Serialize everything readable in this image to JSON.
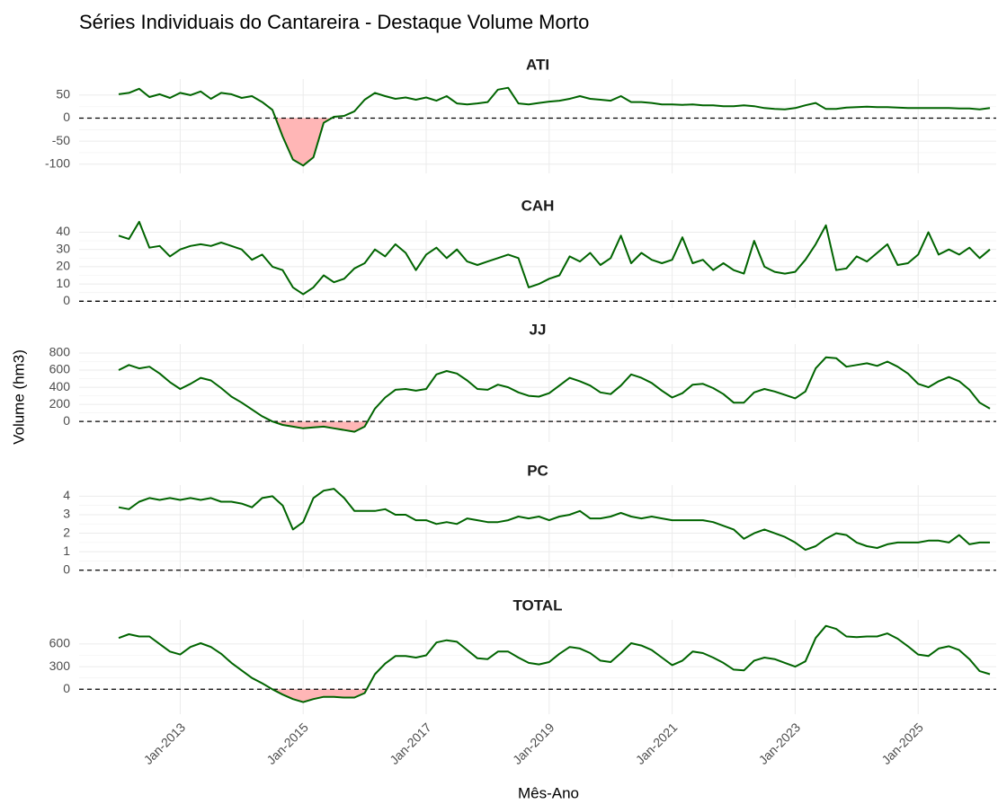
{
  "chart_data": {
    "type": "line",
    "title": "Séries Individuais do Cantareira - Destaque Volume Morto",
    "x_label": "Mês-Ano",
    "y_label": "Volume (hm3)",
    "color": "#006400",
    "negative_fill": "#ffb6b6",
    "hline": 0,
    "grid": true,
    "x": [
      "Jan-2012",
      "Mar-2012",
      "May-2012",
      "Jul-2012",
      "Sep-2012",
      "Nov-2012",
      "Jan-2013",
      "Mar-2013",
      "May-2013",
      "Jul-2013",
      "Sep-2013",
      "Nov-2013",
      "Jan-2014",
      "Mar-2014",
      "May-2014",
      "Jul-2014",
      "Sep-2014",
      "Nov-2014",
      "Jan-2015",
      "Mar-2015",
      "May-2015",
      "Jul-2015",
      "Sep-2015",
      "Nov-2015",
      "Jan-2016",
      "Mar-2016",
      "May-2016",
      "Jul-2016",
      "Sep-2016",
      "Nov-2016",
      "Jan-2017",
      "Mar-2017",
      "May-2017",
      "Jul-2017",
      "Sep-2017",
      "Nov-2017",
      "Jan-2018",
      "Mar-2018",
      "May-2018",
      "Jul-2018",
      "Sep-2018",
      "Nov-2018",
      "Jan-2019",
      "Mar-2019",
      "May-2019",
      "Jul-2019",
      "Sep-2019",
      "Nov-2019",
      "Jan-2020",
      "Mar-2020",
      "May-2020",
      "Jul-2020",
      "Sep-2020",
      "Nov-2020",
      "Jan-2021",
      "Mar-2021",
      "May-2021",
      "Jul-2021",
      "Sep-2021",
      "Nov-2021",
      "Jan-2022",
      "Mar-2022",
      "May-2022",
      "Jul-2022",
      "Sep-2022",
      "Nov-2022",
      "Jan-2023",
      "Mar-2023",
      "May-2023",
      "Jul-2023",
      "Sep-2023",
      "Nov-2023",
      "Jan-2024",
      "Mar-2024",
      "May-2024",
      "Jul-2024",
      "Sep-2024",
      "Nov-2024",
      "Jan-2025",
      "Mar-2025",
      "May-2025",
      "Jul-2025",
      "Sep-2025",
      "Nov-2025",
      "Jan-2026",
      "Mar-2026"
    ],
    "xticks": [
      "Jan-2013",
      "Jan-2015",
      "Jan-2017",
      "Jan-2019",
      "Jan-2021",
      "Jan-2023",
      "Jan-2025"
    ],
    "panels": [
      {
        "name": "ATI",
        "ylim": [
          -120,
          85
        ],
        "yticks": [
          -100,
          -50,
          0,
          50
        ],
        "values": [
          52,
          55,
          64,
          46,
          52,
          44,
          55,
          50,
          58,
          42,
          55,
          52,
          44,
          48,
          35,
          18,
          -40,
          -90,
          -103,
          -85,
          -10,
          3,
          5,
          15,
          40,
          55,
          48,
          42,
          45,
          40,
          45,
          38,
          48,
          32,
          30,
          32,
          35,
          62,
          66,
          32,
          30,
          33,
          36,
          38,
          42,
          48,
          42,
          40,
          38,
          48,
          35,
          35,
          33,
          30,
          30,
          29,
          30,
          28,
          28,
          26,
          26,
          28,
          26,
          22,
          20,
          19,
          22,
          28,
          33,
          20,
          20,
          23,
          24,
          25,
          24,
          24,
          23,
          22,
          22,
          22,
          22,
          22,
          21,
          21,
          19,
          22
        ]
      },
      {
        "name": "CAH",
        "ylim": [
          -4,
          47
        ],
        "yticks": [
          0,
          10,
          20,
          30,
          40
        ],
        "values": [
          38,
          36,
          46,
          31,
          32,
          26,
          30,
          32,
          33,
          32,
          34,
          32,
          30,
          24,
          27,
          20,
          18,
          8,
          4,
          8,
          15,
          11,
          13,
          19,
          22,
          30,
          26,
          33,
          28,
          18,
          27,
          31,
          25,
          30,
          23,
          21,
          23,
          25,
          27,
          25,
          8,
          10,
          13,
          15,
          26,
          23,
          28,
          21,
          25,
          38,
          22,
          28,
          24,
          22,
          24,
          37,
          22,
          24,
          18,
          22,
          18,
          16,
          35,
          20,
          17,
          16,
          17,
          24,
          33,
          44,
          18,
          19,
          26,
          23,
          28,
          33,
          21,
          22,
          27,
          40,
          27,
          30,
          27,
          31,
          25,
          30
        ]
      },
      {
        "name": "JJ",
        "ylim": [
          -240,
          905
        ],
        "yticks": [
          0,
          200,
          400,
          600,
          800
        ],
        "values": [
          600,
          660,
          620,
          640,
          560,
          460,
          380,
          440,
          510,
          480,
          390,
          290,
          220,
          140,
          60,
          0,
          -40,
          -60,
          -80,
          -70,
          -60,
          -80,
          -100,
          -120,
          -60,
          150,
          280,
          370,
          380,
          360,
          380,
          550,
          590,
          560,
          480,
          380,
          370,
          430,
          400,
          340,
          300,
          290,
          330,
          420,
          510,
          470,
          420,
          340,
          320,
          420,
          550,
          510,
          450,
          360,
          280,
          330,
          430,
          440,
          390,
          320,
          220,
          220,
          340,
          380,
          350,
          310,
          270,
          350,
          620,
          750,
          740,
          640,
          660,
          680,
          650,
          700,
          640,
          560,
          440,
          400,
          470,
          520,
          470,
          370,
          220,
          150
        ]
      },
      {
        "name": "PC",
        "ylim": [
          -0.4,
          4.6
        ],
        "yticks": [
          0,
          1,
          2,
          3,
          4
        ],
        "values": [
          3.4,
          3.3,
          3.7,
          3.9,
          3.8,
          3.9,
          3.8,
          3.9,
          3.8,
          3.9,
          3.7,
          3.7,
          3.6,
          3.4,
          3.9,
          4.0,
          3.5,
          2.2,
          2.6,
          3.9,
          4.3,
          4.4,
          3.9,
          3.2,
          3.2,
          3.2,
          3.3,
          3.0,
          3.0,
          2.7,
          2.7,
          2.5,
          2.6,
          2.5,
          2.8,
          2.7,
          2.6,
          2.6,
          2.7,
          2.9,
          2.8,
          2.9,
          2.7,
          2.9,
          3.0,
          3.2,
          2.8,
          2.8,
          2.9,
          3.1,
          2.9,
          2.8,
          2.9,
          2.8,
          2.7,
          2.7,
          2.7,
          2.7,
          2.6,
          2.4,
          2.2,
          1.7,
          2.0,
          2.2,
          2.0,
          1.8,
          1.5,
          1.1,
          1.3,
          1.7,
          2.0,
          1.9,
          1.5,
          1.3,
          1.2,
          1.4,
          1.5,
          1.5,
          1.5,
          1.6,
          1.6,
          1.5,
          1.9,
          1.4,
          1.5,
          1.5
        ]
      },
      {
        "name": "TOTAL",
        "ylim": [
          -330,
          920
        ],
        "yticks": [
          0,
          300,
          600
        ],
        "values": [
          680,
          730,
          700,
          700,
          600,
          500,
          460,
          560,
          610,
          560,
          470,
          350,
          250,
          150,
          80,
          0,
          -70,
          -130,
          -170,
          -130,
          -100,
          -100,
          -110,
          -110,
          -50,
          200,
          340,
          440,
          440,
          420,
          450,
          620,
          650,
          630,
          520,
          410,
          400,
          500,
          500,
          420,
          350,
          330,
          360,
          470,
          560,
          540,
          480,
          380,
          360,
          480,
          610,
          580,
          520,
          420,
          320,
          380,
          500,
          480,
          420,
          350,
          260,
          250,
          380,
          420,
          400,
          350,
          300,
          370,
          680,
          840,
          800,
          700,
          690,
          700,
          700,
          740,
          670,
          570,
          460,
          440,
          540,
          570,
          520,
          400,
          240,
          200
        ]
      }
    ]
  }
}
